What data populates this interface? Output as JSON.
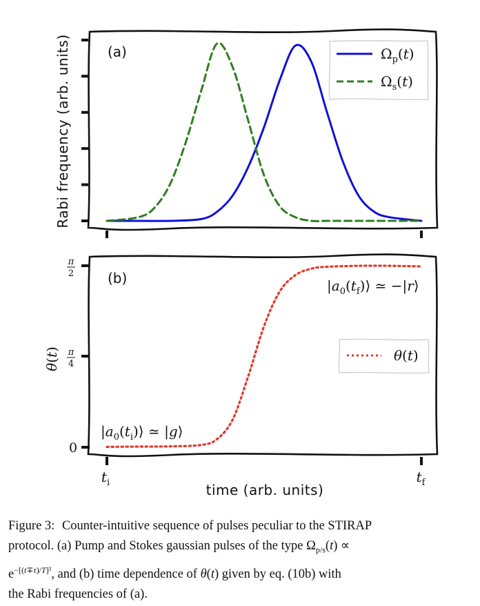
{
  "figure": {
    "panel_a": {
      "label": "(a)",
      "ylabel": "Rabi frequency (arb. units)",
      "legend": [
        "Ωp(t)",
        "Ωs(t)"
      ],
      "colors": {
        "pump": "#1010d8",
        "stokes": "#2e7d1f"
      }
    },
    "panel_b": {
      "label": "(b)",
      "ylabel": "θ(t)",
      "yticks": [
        "0",
        "π/4",
        "π/2"
      ],
      "legend": [
        "θ(t)"
      ],
      "color": "#e0392b",
      "annot_initial": "|a0(ti)⟩ ≃ |g⟩",
      "annot_final": "|a0(tf)⟩ ≃ −|r⟩"
    },
    "xticks": [
      "ti",
      "tf"
    ],
    "xlabel": "time (arb. units)"
  },
  "chart_data": [
    {
      "type": "line",
      "panel": "(a)",
      "xlabel": "time (arb. units)",
      "ylabel": "Rabi frequency (arb. units)",
      "xlim": [
        0,
        1
      ],
      "ylim": [
        0,
        1
      ],
      "grid": false,
      "legend_position": "top-right",
      "series": [
        {
          "name": "Ωp(t)",
          "style": "solid",
          "color": "#1010d8",
          "x": [
            0,
            0.1,
            0.2,
            0.3,
            0.35,
            0.4,
            0.45,
            0.5,
            0.55,
            0.6,
            0.65,
            0.7,
            0.75,
            0.8,
            0.85,
            0.9,
            1.0
          ],
          "y": [
            0,
            0.0,
            0.0,
            0.01,
            0.05,
            0.14,
            0.3,
            0.52,
            0.78,
            0.97,
            0.88,
            0.6,
            0.33,
            0.14,
            0.05,
            0.02,
            0
          ]
        },
        {
          "name": "Ωs(t)",
          "style": "dashed",
          "color": "#2e7d1f",
          "x": [
            0,
            0.1,
            0.15,
            0.2,
            0.25,
            0.3,
            0.35,
            0.4,
            0.45,
            0.5,
            0.55,
            0.6,
            0.65,
            0.7,
            0.8,
            0.9,
            1.0
          ],
          "y": [
            0,
            0.02,
            0.07,
            0.2,
            0.43,
            0.72,
            0.98,
            0.85,
            0.55,
            0.25,
            0.08,
            0.02,
            0.0,
            0.0,
            0.0,
            0.0,
            0
          ]
        }
      ]
    },
    {
      "type": "line",
      "panel": "(b)",
      "xlabel": "time (arb. units)",
      "ylabel": "θ(t)",
      "xticks": [
        "ti",
        "tf"
      ],
      "yticks": [
        "0",
        "π/4",
        "π/2"
      ],
      "xlim": [
        0,
        1
      ],
      "ylim": [
        0,
        1.5708
      ],
      "grid": false,
      "legend_position": "center-right",
      "series": [
        {
          "name": "θ(t)",
          "style": "dotted",
          "color": "#e0392b",
          "x": [
            0,
            0.1,
            0.2,
            0.3,
            0.35,
            0.4,
            0.45,
            0.5,
            0.55,
            0.6,
            0.65,
            0.7,
            0.8,
            0.9,
            1.0
          ],
          "y": [
            0.003,
            0.006,
            0.008,
            0.02,
            0.07,
            0.24,
            0.62,
            1.05,
            1.35,
            1.49,
            1.545,
            1.562,
            1.57,
            1.57,
            1.565
          ]
        }
      ]
    }
  ],
  "caption": {
    "label": "Figure 3:",
    "lines": [
      "Counter-intuitive sequence of pulses peculiar to the STIRAP",
      "protocol. (a) Pump and Stokes gaussian pulses of the type Ωp/s(t) ∝",
      "e−[(t∓τ)/T]², and (b) time dependence of θ(t) given by eq. (10b) with",
      "the Rabi frequencies of (a)."
    ]
  }
}
